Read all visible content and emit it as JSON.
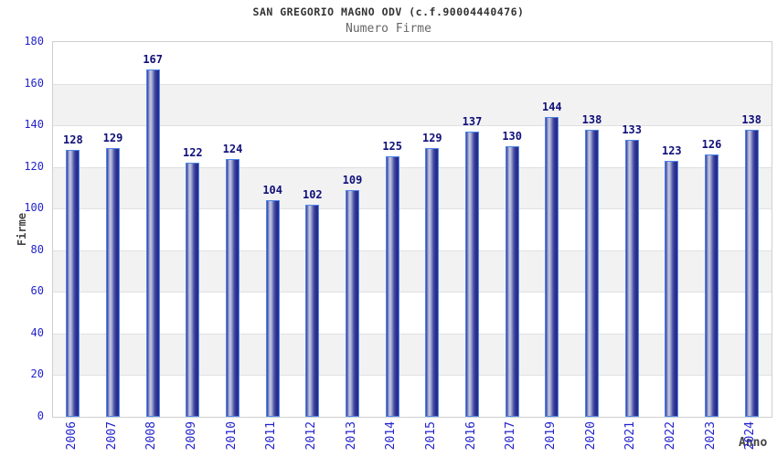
{
  "chart_data": {
    "type": "bar",
    "title": "SAN GREGORIO MAGNO ODV (c.f.90004440476)",
    "subtitle": "Numero Firme",
    "xlabel": "Anno",
    "ylabel": "Firme",
    "categories": [
      "2006",
      "2007",
      "2008",
      "2009",
      "2010",
      "2011",
      "2012",
      "2013",
      "2014",
      "2015",
      "2016",
      "2017",
      "2019",
      "2020",
      "2021",
      "2022",
      "2023",
      "2024"
    ],
    "values": [
      128,
      129,
      167,
      122,
      124,
      104,
      102,
      109,
      125,
      129,
      137,
      130,
      144,
      138,
      133,
      123,
      126,
      138
    ],
    "ylim": [
      0,
      180
    ],
    "ytick_step": 20,
    "grid": "horizontal-bands-alternating",
    "legend": "none",
    "colors": {
      "bar_dark": "#2b2f90",
      "bar_highlight": "#c7cbe6",
      "bar_border": "#4f86e8",
      "value_label": "#10107a",
      "tick_label": "#2323cc",
      "band_gray": "#f2f2f2",
      "band_white": "#ffffff",
      "gridline": "#e0e0e0",
      "plot_border": "#cfcfcf",
      "title_color": "#333333",
      "subtitle_color": "#666666",
      "axis_title_color": "#444444"
    }
  }
}
